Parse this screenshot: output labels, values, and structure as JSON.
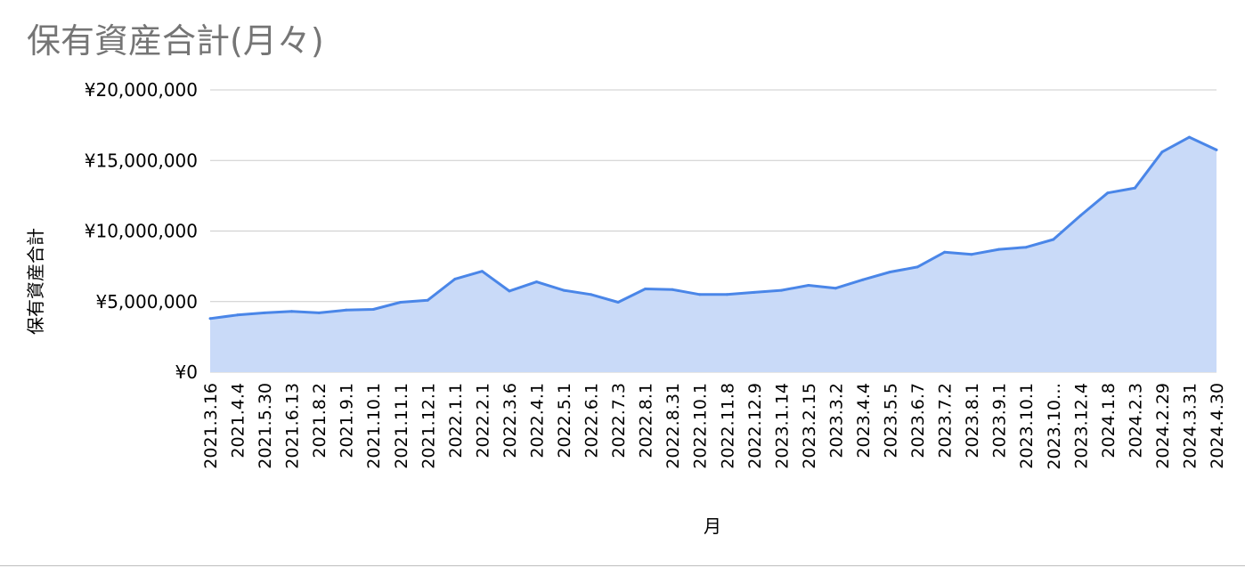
{
  "colors": {
    "line": "#4a86e8",
    "fill": "#c9daf8",
    "grid": "#cccccc",
    "title": "#757575"
  },
  "chart_data": {
    "type": "area",
    "title": "保有資産合計(月々)",
    "xlabel": "月",
    "ylabel": "保有資産合計",
    "ylim": [
      0,
      20000000
    ],
    "yticks": [
      0,
      5000000,
      10000000,
      15000000,
      20000000
    ],
    "ytick_labels": [
      "¥0",
      "¥5,000,000",
      "¥10,000,000",
      "¥15,000,000",
      "¥20,000,000"
    ],
    "grid": true,
    "legend": "none",
    "categories": [
      "2021.3.16",
      "2021.4.4",
      "2021.5.30",
      "2021.6.13",
      "2021.8.2",
      "2021.9.1",
      "2021.10.1",
      "2021.11.1",
      "2021.12.1",
      "2022.1.1",
      "2022.2.1",
      "2022.3.6",
      "2022.4.1",
      "2022.5.1",
      "2022.6.1",
      "2022.7.3",
      "2022.8.1",
      "2022.8.31",
      "2022.10.1",
      "2022.11.8",
      "2022.12.9",
      "2023.1.14",
      "2023.2.15",
      "2023.3.2",
      "2023.4.4",
      "2023.5.5",
      "2023.6.7",
      "2023.7.2",
      "2023.8.1",
      "2023.9.1",
      "2023.10.1",
      "2023.10…",
      "2023.12.4",
      "2024.1.8",
      "2024.2.3",
      "2024.2.29",
      "2024.3.31",
      "2024.4.30"
    ],
    "series": [
      {
        "values": [
          3800000,
          4050000,
          4200000,
          4300000,
          4200000,
          4400000,
          4450000,
          4950000,
          5100000,
          6600000,
          7150000,
          5750000,
          6400000,
          5800000,
          5500000,
          4950000,
          5900000,
          5850000,
          5500000,
          5500000,
          5650000,
          5800000,
          6150000,
          5950000,
          6550000,
          7100000,
          7450000,
          8500000,
          8350000,
          8700000,
          8850000,
          9400000,
          11100000,
          12700000,
          13050000,
          15600000,
          16650000,
          15750000
        ]
      }
    ]
  }
}
